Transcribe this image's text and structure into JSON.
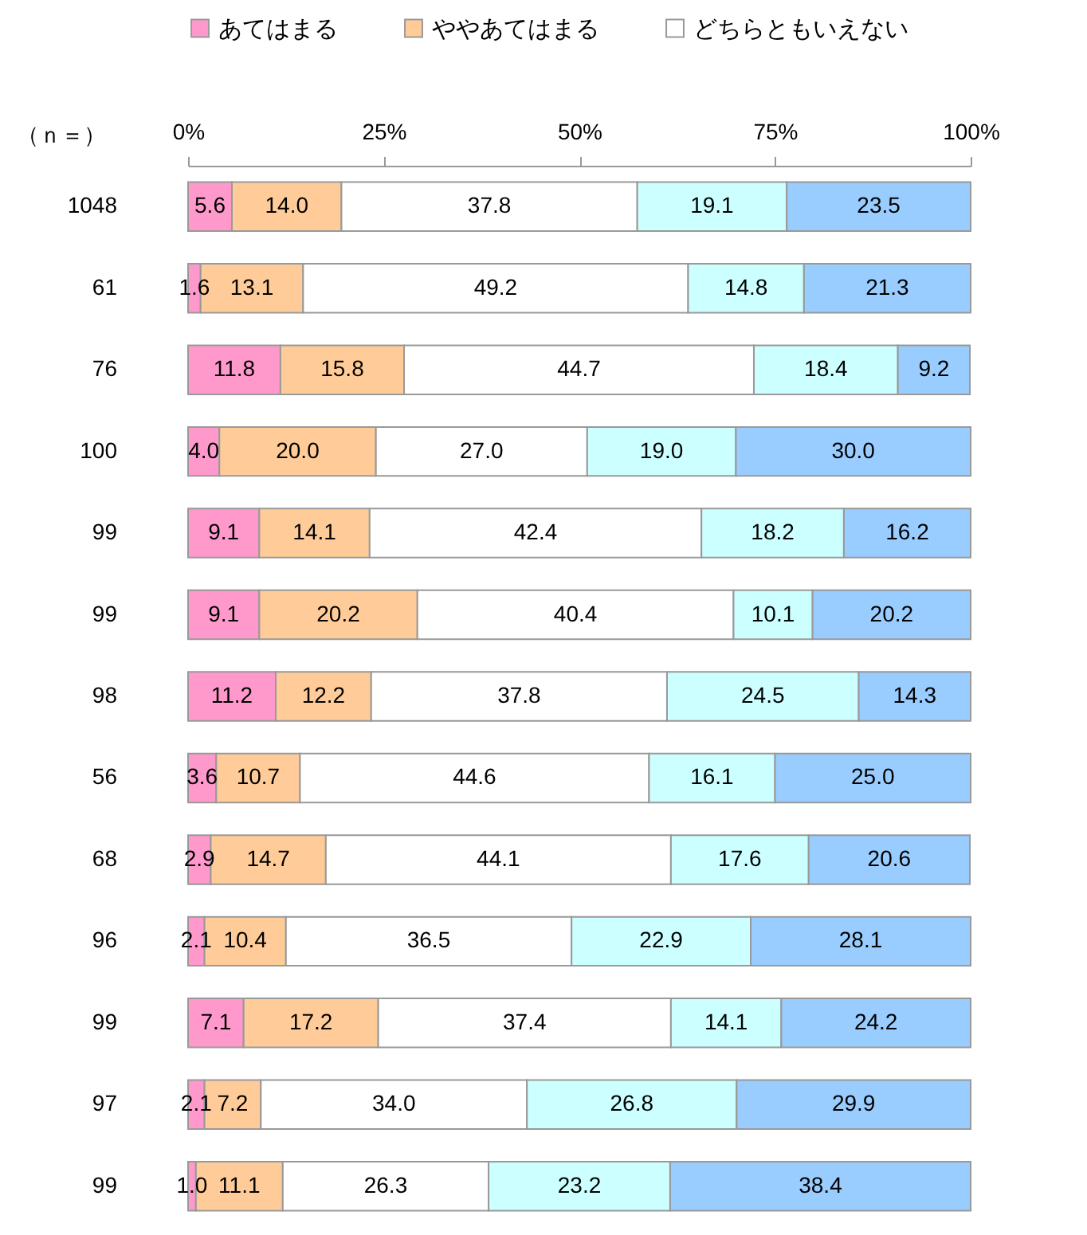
{
  "chart_data": {
    "type": "bar",
    "orientation": "horizontal",
    "stacked": true,
    "ylabel": "（ｎ＝）",
    "legend": "top",
    "categories": [
      "1048",
      "61",
      "76",
      "100",
      "99",
      "99",
      "98",
      "56",
      "68",
      "96",
      "99",
      "97",
      "99"
    ],
    "xlim": [
      0,
      100
    ],
    "xticks": [
      {
        "value": 0,
        "label": "0%"
      },
      {
        "value": 25,
        "label": "25%"
      },
      {
        "value": 50,
        "label": "50%"
      },
      {
        "value": 75,
        "label": "75%"
      },
      {
        "value": 100,
        "label": "100%"
      }
    ],
    "series": [
      {
        "name": "あてはまる",
        "color": "#ff99cc",
        "values": [
          5.6,
          1.6,
          11.8,
          4.0,
          9.1,
          9.1,
          11.2,
          3.6,
          2.9,
          2.1,
          7.1,
          2.1,
          1.0
        ],
        "value_labels": [
          "5.6",
          "1.6",
          "11.8",
          "4.0",
          "9.1",
          "9.1",
          "11.2",
          "3.6",
          "2.9",
          "2.1",
          "7.1",
          "2.1",
          "1.0"
        ]
      },
      {
        "name": "ややあてはまる",
        "color": "#ffcc99",
        "values": [
          14.0,
          13.1,
          15.8,
          20.0,
          14.1,
          20.2,
          12.2,
          10.7,
          14.7,
          10.4,
          17.2,
          7.2,
          11.1
        ],
        "value_labels": [
          "14.0",
          "13.1",
          "15.8",
          "20.0",
          "14.1",
          "20.2",
          "12.2",
          "10.7",
          "14.7",
          "10.4",
          "17.2",
          "7.2",
          "11.1"
        ]
      },
      {
        "name": "どちらともいえない",
        "color": "#ffffff",
        "values": [
          37.8,
          49.2,
          44.7,
          27.0,
          42.4,
          40.4,
          37.8,
          44.6,
          44.1,
          36.5,
          37.4,
          34.0,
          26.3
        ],
        "value_labels": [
          "37.8",
          "49.2",
          "44.7",
          "27.0",
          "42.4",
          "40.4",
          "37.8",
          "44.6",
          "44.1",
          "36.5",
          "37.4",
          "34.0",
          "26.3"
        ]
      },
      {
        "color": "#ccffff",
        "values": [
          19.1,
          14.8,
          18.4,
          19.0,
          18.2,
          10.1,
          24.5,
          16.1,
          17.6,
          22.9,
          14.1,
          26.8,
          23.2
        ],
        "value_labels": [
          "19.1",
          "14.8",
          "18.4",
          "19.0",
          "18.2",
          "10.1",
          "24.5",
          "16.1",
          "17.6",
          "22.9",
          "14.1",
          "26.8",
          "23.2"
        ]
      },
      {
        "color": "#99ccff",
        "values": [
          23.5,
          21.3,
          9.2,
          30.0,
          16.2,
          20.2,
          14.3,
          25.0,
          20.6,
          28.1,
          24.2,
          29.9,
          38.4
        ],
        "value_labels": [
          "23.5",
          "21.3",
          "9.2",
          "30.0",
          "16.2",
          "20.2",
          "14.3",
          "25.0",
          "20.6",
          "28.1",
          "24.2",
          "29.9",
          "38.4"
        ]
      }
    ]
  }
}
